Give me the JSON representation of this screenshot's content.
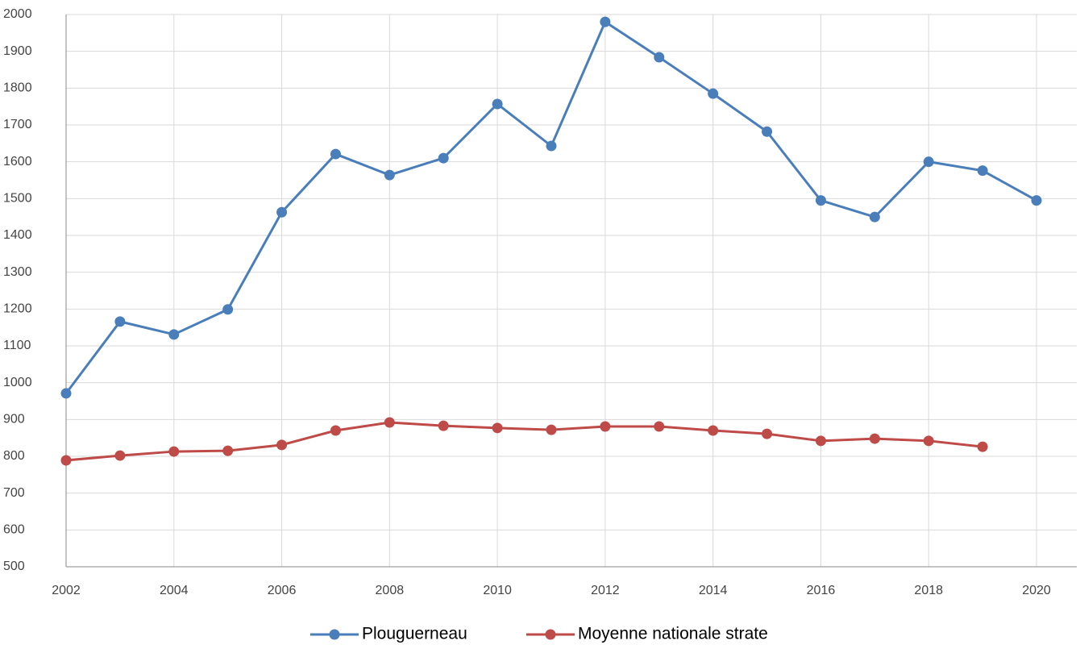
{
  "chart_data": {
    "type": "line",
    "x": [
      2002,
      2003,
      2004,
      2005,
      2006,
      2007,
      2008,
      2009,
      2010,
      2011,
      2012,
      2013,
      2014,
      2015,
      2016,
      2017,
      2018,
      2019,
      2020
    ],
    "series": [
      {
        "name": "Plouguerneau",
        "color": "#4a7ebb",
        "values": [
          971,
          1166,
          1131,
          1199,
          1463,
          1621,
          1564,
          1610,
          1757,
          1643,
          1980,
          1884,
          1785,
          1682,
          1495,
          1450,
          1600,
          1576,
          1495
        ]
      },
      {
        "name": "Moyenne nationale strate",
        "color": "#be4b48",
        "values": [
          789,
          802,
          813,
          815,
          831,
          870,
          892,
          883,
          877,
          872,
          881,
          881,
          870,
          861,
          842,
          848,
          842,
          826,
          null
        ]
      }
    ],
    "xlim": [
      2002,
      2020
    ],
    "xticks": [
      2002,
      2004,
      2006,
      2008,
      2010,
      2012,
      2014,
      2016,
      2018,
      2020
    ],
    "ylim": [
      500,
      2000
    ],
    "yticks": [
      500,
      600,
      700,
      800,
      900,
      1000,
      1100,
      1200,
      1300,
      1400,
      1500,
      1600,
      1700,
      1800,
      1900,
      2000
    ],
    "grid": true,
    "legend": "bottom"
  }
}
